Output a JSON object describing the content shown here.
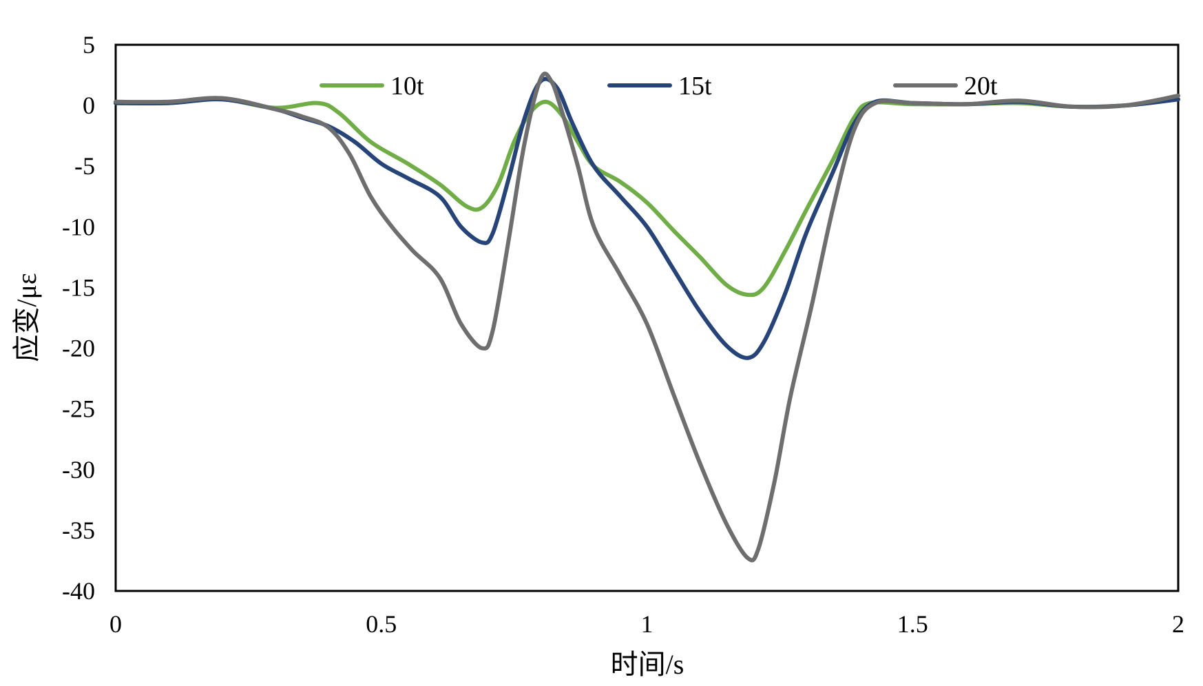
{
  "chart_data": {
    "type": "line",
    "title": "",
    "xlabel": "时间/s",
    "ylabel": "应变/με",
    "xlim": [
      0,
      2
    ],
    "ylim": [
      -40,
      5
    ],
    "xticks": [
      0,
      0.5,
      1,
      1.5,
      2
    ],
    "xtick_labels": [
      "0",
      "0.5",
      "1",
      "1.5",
      "2"
    ],
    "yticks": [
      5,
      0,
      -5,
      -10,
      -15,
      -20,
      -25,
      -30,
      -35,
      -40
    ],
    "ytick_labels": [
      "5",
      "0",
      "-5",
      "-10",
      "-15",
      "-20",
      "-25",
      "-30",
      "-35",
      "-40"
    ],
    "grid": false,
    "legend_position": "top",
    "series": [
      {
        "name": "10t",
        "color": "#70AD47",
        "points": [
          [
            0,
            0.2
          ],
          [
            0.1,
            0.2
          ],
          [
            0.2,
            0.5
          ],
          [
            0.3,
            -0.2
          ],
          [
            0.38,
            0.2
          ],
          [
            0.42,
            -0.6
          ],
          [
            0.48,
            -3
          ],
          [
            0.55,
            -4.8
          ],
          [
            0.61,
            -6.5
          ],
          [
            0.66,
            -8.3
          ],
          [
            0.69,
            -8.4
          ],
          [
            0.72,
            -6.5
          ],
          [
            0.75,
            -3
          ],
          [
            0.78,
            -0.6
          ],
          [
            0.81,
            0.3
          ],
          [
            0.84,
            -0.8
          ],
          [
            0.87,
            -3
          ],
          [
            0.9,
            -5
          ],
          [
            0.95,
            -6.3
          ],
          [
            1.0,
            -8
          ],
          [
            1.05,
            -10.3
          ],
          [
            1.1,
            -12.5
          ],
          [
            1.15,
            -14.8
          ],
          [
            1.19,
            -15.6
          ],
          [
            1.22,
            -15
          ],
          [
            1.26,
            -12
          ],
          [
            1.3,
            -8.6
          ],
          [
            1.35,
            -4.5
          ],
          [
            1.39,
            -1
          ],
          [
            1.42,
            0.2
          ],
          [
            1.5,
            0.1
          ],
          [
            1.6,
            0.1
          ],
          [
            1.7,
            0.2
          ],
          [
            1.8,
            -0.1
          ],
          [
            1.9,
            0
          ],
          [
            2.0,
            0.5
          ]
        ]
      },
      {
        "name": "15t",
        "color": "#264478",
        "points": [
          [
            0,
            0.2
          ],
          [
            0.1,
            0.2
          ],
          [
            0.2,
            0.5
          ],
          [
            0.3,
            -0.3
          ],
          [
            0.35,
            -1
          ],
          [
            0.4,
            -1.7
          ],
          [
            0.45,
            -3
          ],
          [
            0.5,
            -4.8
          ],
          [
            0.55,
            -6
          ],
          [
            0.61,
            -7.5
          ],
          [
            0.65,
            -10
          ],
          [
            0.69,
            -11.3
          ],
          [
            0.71,
            -10.5
          ],
          [
            0.74,
            -6
          ],
          [
            0.77,
            -1
          ],
          [
            0.8,
            2
          ],
          [
            0.83,
            1.5
          ],
          [
            0.86,
            -1.5
          ],
          [
            0.9,
            -5
          ],
          [
            0.95,
            -7.5
          ],
          [
            1.0,
            -10
          ],
          [
            1.05,
            -13.5
          ],
          [
            1.1,
            -17
          ],
          [
            1.15,
            -19.8
          ],
          [
            1.19,
            -20.8
          ],
          [
            1.22,
            -19.5
          ],
          [
            1.26,
            -15.5
          ],
          [
            1.3,
            -10.5
          ],
          [
            1.35,
            -5.5
          ],
          [
            1.39,
            -1.5
          ],
          [
            1.43,
            0.3
          ],
          [
            1.5,
            0.2
          ],
          [
            1.6,
            0.1
          ],
          [
            1.7,
            0.3
          ],
          [
            1.8,
            -0.1
          ],
          [
            1.9,
            0
          ],
          [
            2.0,
            0.5
          ]
        ]
      },
      {
        "name": "20t",
        "color": "#6E6E6E",
        "points": [
          [
            0,
            0.3
          ],
          [
            0.1,
            0.3
          ],
          [
            0.2,
            0.6
          ],
          [
            0.3,
            -0.3
          ],
          [
            0.35,
            -0.9
          ],
          [
            0.4,
            -1.8
          ],
          [
            0.44,
            -4
          ],
          [
            0.48,
            -7.5
          ],
          [
            0.52,
            -10
          ],
          [
            0.56,
            -12
          ],
          [
            0.61,
            -14.2
          ],
          [
            0.65,
            -18
          ],
          [
            0.69,
            -20
          ],
          [
            0.71,
            -18.5
          ],
          [
            0.74,
            -11
          ],
          [
            0.77,
            -3
          ],
          [
            0.8,
            2.2
          ],
          [
            0.82,
            2
          ],
          [
            0.84,
            -0.5
          ],
          [
            0.87,
            -5
          ],
          [
            0.9,
            -10
          ],
          [
            0.95,
            -14
          ],
          [
            1.0,
            -18
          ],
          [
            1.05,
            -23.8
          ],
          [
            1.1,
            -29.5
          ],
          [
            1.15,
            -34.5
          ],
          [
            1.19,
            -37.3
          ],
          [
            1.21,
            -36.5
          ],
          [
            1.24,
            -31
          ],
          [
            1.27,
            -24
          ],
          [
            1.31,
            -16.5
          ],
          [
            1.35,
            -8.5
          ],
          [
            1.39,
            -2
          ],
          [
            1.43,
            0.2
          ],
          [
            1.5,
            0.2
          ],
          [
            1.6,
            0.1
          ],
          [
            1.7,
            0.4
          ],
          [
            1.8,
            -0.1
          ],
          [
            1.9,
            0
          ],
          [
            2.0,
            0.8
          ]
        ]
      }
    ]
  }
}
